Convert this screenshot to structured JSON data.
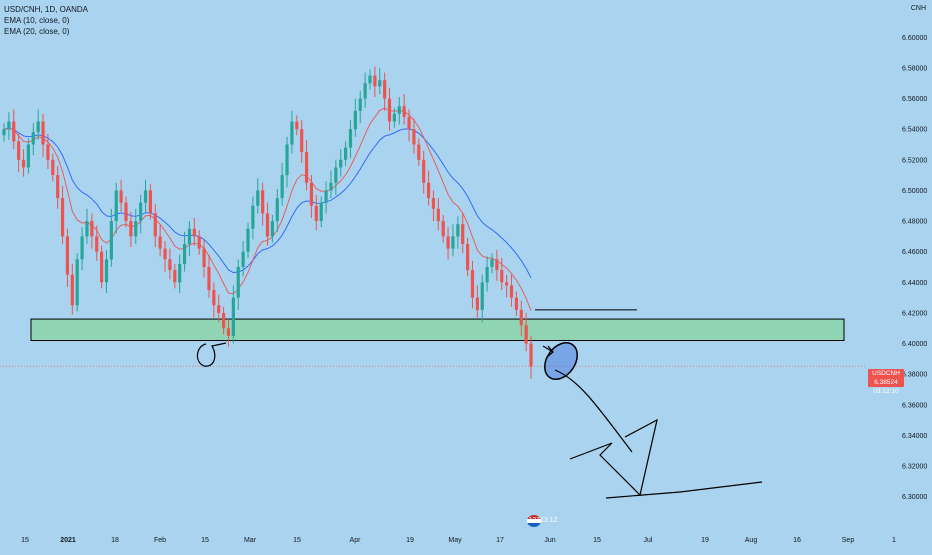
{
  "legend": {
    "symbol": "USD/CNH, 1D, OANDA",
    "ema10": "EMA (10, close, 0)",
    "ema20": "EMA (20, close, 0)"
  },
  "currency_label": "CNH",
  "price_tag": {
    "symbol": "USDCNH",
    "price": "6.38524",
    "countdown": "03:12:10"
  },
  "watermark": "12713 12",
  "colors": {
    "background": "#a9d3ee",
    "up": "#26a69a",
    "down": "#ef5350",
    "ema10": "#ef5350",
    "ema20": "#2962ff",
    "zone_fill": "#8fd4b3"
  },
  "chart_data": {
    "type": "candlestick",
    "ylim": [
      6.29,
      6.61
    ],
    "y_ticks": [
      "6.60000",
      "6.58000",
      "6.56000",
      "6.54000",
      "6.52000",
      "6.50000",
      "6.48000",
      "6.46000",
      "6.44000",
      "6.42000",
      "6.40000",
      "6.38000",
      "6.36000",
      "6.34000",
      "6.32000",
      "6.30000"
    ],
    "x_ticks": [
      {
        "label": "15"
      },
      {
        "label": "2021",
        "bold": true
      },
      {
        "label": "18"
      },
      {
        "label": "Feb"
      },
      {
        "label": "15"
      },
      {
        "label": "Mar"
      },
      {
        "label": "15"
      },
      {
        "label": "Apr"
      },
      {
        "label": "19"
      },
      {
        "label": "May"
      },
      {
        "label": "17"
      },
      {
        "label": "Jun"
      },
      {
        "label": "15"
      },
      {
        "label": "Jul"
      },
      {
        "label": "19"
      },
      {
        "label": "Aug"
      },
      {
        "label": "16"
      },
      {
        "label": "Sep"
      },
      {
        "label": "1"
      }
    ],
    "ohlc_close": [
      6.54,
      6.545,
      6.532,
      6.52,
      6.515,
      6.53,
      6.538,
      6.545,
      6.53,
      6.52,
      6.51,
      6.495,
      6.47,
      6.445,
      6.425,
      6.455,
      6.47,
      6.48,
      6.47,
      6.46,
      6.44,
      6.455,
      6.48,
      6.5,
      6.492,
      6.48,
      6.47,
      6.48,
      6.492,
      6.5,
      6.485,
      6.47,
      6.462,
      6.455,
      6.448,
      6.44,
      6.452,
      6.465,
      6.475,
      6.47,
      6.462,
      6.45,
      6.435,
      6.425,
      6.42,
      6.41,
      6.405,
      6.43,
      6.45,
      6.46,
      6.475,
      6.49,
      6.5,
      6.485,
      6.47,
      6.48,
      6.495,
      6.51,
      6.53,
      6.545,
      6.54,
      6.525,
      6.505,
      6.49,
      6.48,
      6.492,
      6.5,
      6.505,
      6.515,
      6.52,
      6.528,
      6.54,
      6.552,
      6.56,
      6.57,
      6.575,
      6.568,
      6.572,
      6.56,
      6.545,
      6.55,
      6.555,
      6.548,
      6.54,
      6.53,
      6.52,
      6.505,
      6.495,
      6.488,
      6.48,
      6.47,
      6.462,
      6.47,
      6.478,
      6.465,
      6.448,
      6.43,
      6.422,
      6.44,
      6.45,
      6.455,
      6.448,
      6.44,
      6.438,
      6.43,
      6.422,
      6.412,
      6.4,
      6.385
    ],
    "ema10_last": 6.425,
    "ema20_last": 6.442,
    "zone": [
      6.402,
      6.416
    ],
    "resistance_line": 6.422,
    "current_price": 6.38524
  }
}
